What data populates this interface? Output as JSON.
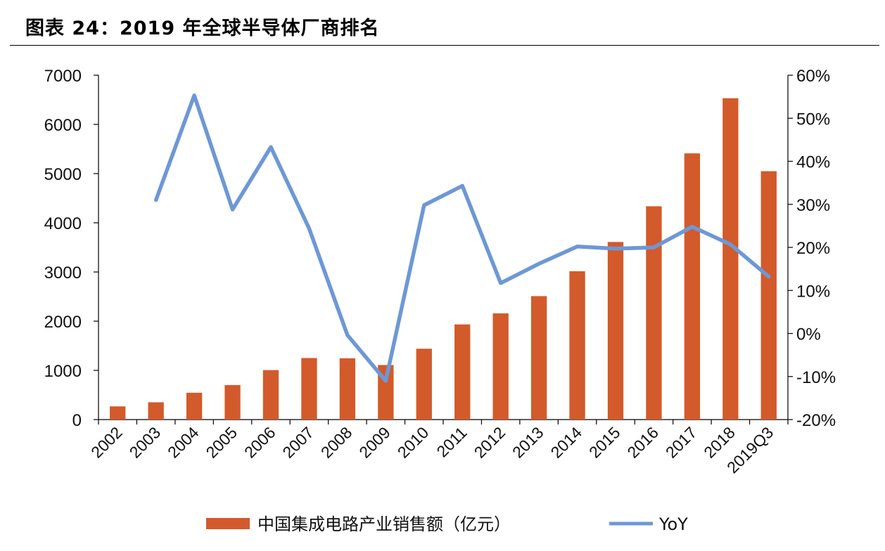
{
  "caption": "图表 24：2019 年全球半导体厂商排名",
  "chart_data": {
    "type": "bar",
    "title": "",
    "categories": [
      "2002",
      "2003",
      "2004",
      "2005",
      "2006",
      "2007",
      "2008",
      "2009",
      "2010",
      "2011",
      "2012",
      "2013",
      "2014",
      "2015",
      "2016",
      "2017",
      "2018",
      "2019Q3"
    ],
    "series": [
      {
        "name": "中国集成电路产业销售额（亿元）",
        "type": "bar",
        "axis": "left",
        "color": "#D35A2A",
        "values": [
          268,
          351,
          545,
          702,
          1006,
          1251,
          1246,
          1109,
          1440,
          1934,
          2159,
          2509,
          3015,
          3610,
          4336,
          5411,
          6532,
          5049
        ]
      },
      {
        "name": "YoY",
        "type": "line",
        "axis": "right",
        "color": "#6D98D6",
        "values": [
          null,
          0.31,
          0.553,
          0.288,
          0.433,
          0.244,
          -0.004,
          -0.11,
          0.298,
          0.343,
          0.117,
          0.162,
          0.202,
          0.197,
          0.2,
          0.248,
          0.207,
          0.132
        ]
      }
    ],
    "y_left": {
      "min": 0,
      "max": 7000,
      "step": 1000,
      "ticks": [
        "0",
        "1000",
        "2000",
        "3000",
        "4000",
        "5000",
        "6000",
        "7000"
      ]
    },
    "y_right": {
      "min": -0.2,
      "max": 0.6,
      "step": 0.1,
      "ticks": [
        "-20%",
        "-10%",
        "0%",
        "10%",
        "20%",
        "30%",
        "40%",
        "50%",
        "60%"
      ]
    },
    "xlabel": "",
    "ylabel": "",
    "grid": false,
    "legend": "bottom"
  }
}
